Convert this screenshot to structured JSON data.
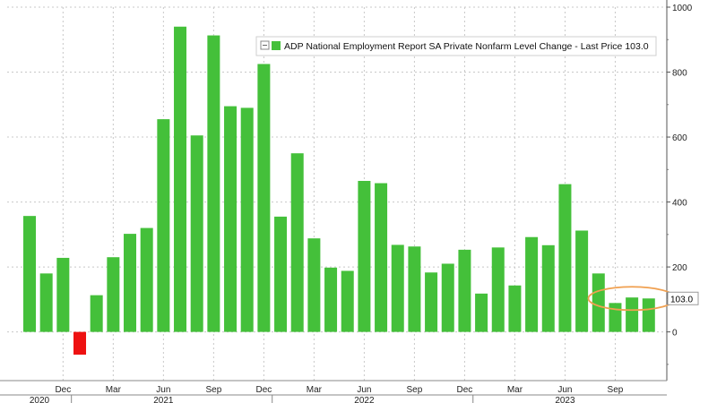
{
  "chart_data": {
    "type": "bar",
    "title": "",
    "legend": {
      "label": "ADP National Employment Report SA Private Nonfarm Level Change - Last Price 103.0",
      "position": "top-right",
      "color": "#44c03a"
    },
    "last_value_label": "103.0",
    "ylim": [
      -150,
      1000
    ],
    "y_ticks": [
      0,
      200,
      400,
      600,
      800,
      1000
    ],
    "y_axis_side": "right",
    "grid": true,
    "positive_color": "#44c03a",
    "negative_color": "#ee1111",
    "highlight_color": "#f0a050",
    "categories": [
      "Oct 2020",
      "Nov 2020",
      "Dec 2020",
      "Jan 2021",
      "Feb 2021",
      "Mar 2021",
      "Apr 2021",
      "May 2021",
      "Jun 2021",
      "Jul 2021",
      "Aug 2021",
      "Sep 2021",
      "Oct 2021",
      "Nov 2021",
      "Dec 2021",
      "Jan 2022",
      "Feb 2022",
      "Mar 2022",
      "Apr 2022",
      "May 2022",
      "Jun 2022",
      "Jul 2022",
      "Aug 2022",
      "Sep 2022",
      "Oct 2022",
      "Nov 2022",
      "Dec 2022",
      "Jan 2023",
      "Feb 2023",
      "Mar 2023",
      "Apr 2023",
      "May 2023",
      "Jun 2023",
      "Jul 2023",
      "Aug 2023",
      "Sep 2023",
      "Oct 2023",
      "Nov 2023"
    ],
    "values": [
      357,
      180,
      228,
      -70,
      113,
      230,
      302,
      320,
      655,
      940,
      605,
      913,
      695,
      690,
      825,
      355,
      550,
      288,
      198,
      188,
      465,
      458,
      268,
      263,
      183,
      210,
      253,
      118,
      260,
      143,
      292,
      267,
      455,
      312,
      180,
      89,
      106,
      103
    ],
    "x_tick_labels": [
      {
        "index": 2,
        "label": "Dec"
      },
      {
        "index": 5,
        "label": "Mar"
      },
      {
        "index": 8,
        "label": "Jun"
      },
      {
        "index": 11,
        "label": "Sep"
      },
      {
        "index": 14,
        "label": "Dec"
      },
      {
        "index": 17,
        "label": "Mar"
      },
      {
        "index": 20,
        "label": "Jun"
      },
      {
        "index": 23,
        "label": "Sep"
      },
      {
        "index": 26,
        "label": "Dec"
      },
      {
        "index": 29,
        "label": "Mar"
      },
      {
        "index": 32,
        "label": "Jun"
      },
      {
        "index": 35,
        "label": "Sep"
      }
    ],
    "year_labels": [
      {
        "index": 0,
        "label": "2020"
      },
      {
        "index": 8,
        "label": "2021"
      },
      {
        "index": 20,
        "label": "2022"
      },
      {
        "index": 32,
        "label": "2023"
      }
    ],
    "highlight_range": [
      35,
      37
    ]
  }
}
